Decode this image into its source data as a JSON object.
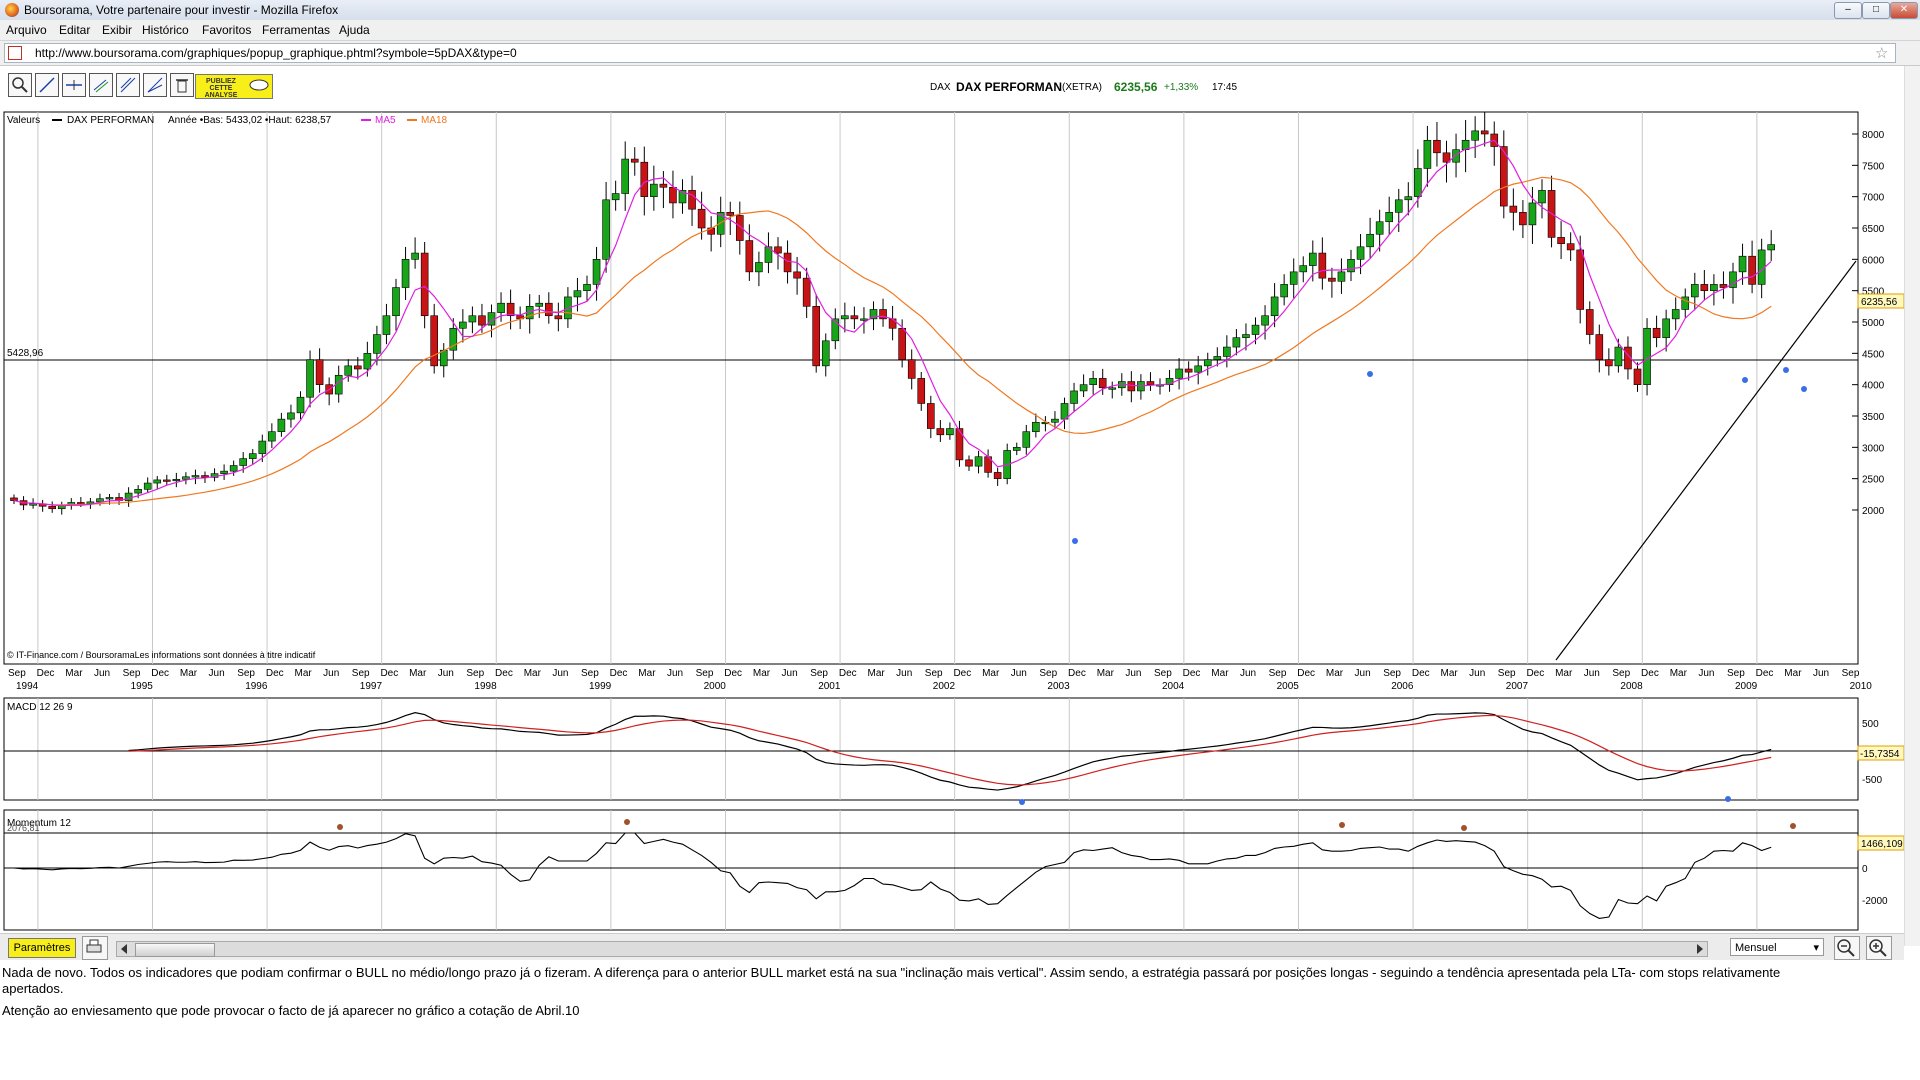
{
  "window": {
    "title": "Boursorama, Votre partenaire pour investir - Mozilla Firefox"
  },
  "menu": {
    "items": [
      "Arquivo",
      "Editar",
      "Exibir",
      "Histórico",
      "Favoritos",
      "Ferramentas",
      "Ajuda"
    ]
  },
  "address": {
    "url": "http://www.boursorama.com/graphiques/popup_graphique.phtml?symbole=5pDAX&type=0"
  },
  "toolbar": {
    "publiez_label": "PUBLIEZ CETTE ANALYSE"
  },
  "header": {
    "symbol": "DAX",
    "name": "DAX PERFORMAN",
    "exchange": "(XETRA)",
    "price": "6235,56",
    "change": "+1,33%",
    "time": "17:45"
  },
  "legend": {
    "valeurs": "Valeurs",
    "series_name": "DAX PERFORMAN",
    "stats": "Année •Bas: 5433,02 •Haut: 6238,57",
    "ma5": "MA5",
    "ma18": "MA18",
    "colors": {
      "price": "#000000",
      "ma5": "#e020e0",
      "ma18": "#f07820",
      "up": "#19a519",
      "down": "#c81414"
    }
  },
  "main_chart": {
    "hline_label": "5428,96",
    "current_value_label": "6235,56",
    "copyright": "© IT-Finance.com / BoursoramaLes informations sont données à titre indicatif",
    "y_ticks": [
      "8000",
      "7500",
      "7000",
      "6500",
      "6000",
      "5500",
      "5000",
      "4500",
      "4000",
      "3500",
      "3000",
      "2500",
      "2000"
    ],
    "x_month_labels": [
      "Sep",
      "Dec",
      "Mar",
      "Jun",
      "Sep",
      "Dec",
      "Mar",
      "Jun",
      "Sep",
      "Dec",
      "Mar",
      "Jun",
      "Sep",
      "Dec",
      "Mar",
      "Jun",
      "Sep",
      "Dec",
      "Mar",
      "Jun",
      "Sep",
      "Dec",
      "Mar",
      "Jun",
      "Sep",
      "Dec",
      "Mar",
      "Jun",
      "Sep",
      "Dec",
      "Mar",
      "Jun",
      "Sep",
      "Dec",
      "Mar",
      "Jun",
      "Sep",
      "Dec",
      "Mar",
      "Jun",
      "Sep",
      "Dec",
      "Mar",
      "Jun",
      "Sep",
      "Dec",
      "Mar",
      "Jun",
      "Sep",
      "Dec",
      "Mar",
      "Jun",
      "Sep",
      "Dec",
      "Mar",
      "Jun",
      "Sep",
      "Dec",
      "Mar",
      "Jun",
      "Sep",
      "Dec",
      "Mar",
      "Jun",
      "Sep"
    ],
    "x_year_labels": [
      "1994",
      "1995",
      "1996",
      "1997",
      "1998",
      "1999",
      "2000",
      "2001",
      "2002",
      "2003",
      "2004",
      "2005",
      "2006",
      "2007",
      "2008",
      "2009",
      "2010"
    ]
  },
  "macd_panel": {
    "label": "MACD 12 26 9",
    "y_ticks": [
      "500",
      "-500"
    ],
    "current_value_label": "-15,7354"
  },
  "momentum_panel": {
    "label": "Momentum 12",
    "overlay_label": "2076,81",
    "y_ticks": [
      "0",
      "-2000"
    ],
    "current_value_label": "1466,109"
  },
  "bottom": {
    "params_label": "Paramètres",
    "period_value": "Mensuel"
  },
  "comment": {
    "line1": "Nada de novo. Todos os indicadores que podiam confirmar o BULL no médio/longo prazo já o fizeram. A diferença para o anterior BULL market está na sua \"inclinação mais vertical\". Assim sendo, a estratégia passará por posições longas - seguindo a tendência apresentada pela LTa- com stops relativamente apertados.",
    "line2": "Atenção ao enviesamento que pode provocar o facto de já aparecer no gráfico a cotação de Abril.10"
  },
  "chart_data": {
    "type": "candlestick",
    "title": "DAX PERFORMAN",
    "period": "monthly",
    "x_start": "1994-09",
    "ylim": [
      1800,
      8300
    ],
    "monthly_close": [
      2150,
      2080,
      2100,
      2060,
      2020,
      2080,
      2120,
      2100,
      2130,
      2180,
      2200,
      2150,
      2270,
      2330,
      2430,
      2480,
      2470,
      2490,
      2530,
      2550,
      2520,
      2580,
      2620,
      2710,
      2820,
      2900,
      3100,
      3250,
      3450,
      3550,
      3800,
      4400,
      4000,
      3850,
      4150,
      4300,
      4250,
      4500,
      4800,
      5100,
      5550,
      6000,
      6100,
      5100,
      4300,
      4550,
      4900,
      5000,
      5100,
      4950,
      5150,
      5300,
      5100,
      5050,
      5250,
      5300,
      5100,
      5050,
      5400,
      5500,
      5600,
      6000,
      6950,
      7050,
      7600,
      7550,
      7000,
      7200,
      7150,
      6900,
      7100,
      6800,
      6500,
      6400,
      6750,
      6700,
      6300,
      5800,
      5950,
      6200,
      6100,
      5800,
      5700,
      5250,
      4300,
      4700,
      5050,
      5100,
      5050,
      5050,
      5200,
      5050,
      4900,
      4400,
      4100,
      3700,
      3300,
      3200,
      3300,
      2800,
      2700,
      2850,
      2600,
      2500,
      2950,
      3000,
      3250,
      3400,
      3400,
      3450,
      3700,
      3900,
      4000,
      4100,
      3950,
      3950,
      4050,
      3900,
      4050,
      4000,
      4000,
      4100,
      4250,
      4200,
      4300,
      4400,
      4450,
      4600,
      4750,
      4800,
      4950,
      5100,
      5400,
      5600,
      5800,
      5900,
      6100,
      5700,
      5650,
      5800,
      6000,
      6200,
      6400,
      6600,
      6750,
      6950,
      7000,
      7450,
      7900,
      7700,
      7550,
      7750,
      7900,
      8050,
      8000,
      7800,
      6850,
      6750,
      6550,
      6900,
      7100,
      6350,
      6250,
      6150,
      5200,
      4800,
      4400,
      4300,
      4600,
      4250,
      4000,
      4900,
      4750,
      5050,
      5200,
      5400,
      5600,
      5500,
      5600,
      5550,
      5800,
      6050,
      5600,
      6150,
      6235
    ]
  }
}
